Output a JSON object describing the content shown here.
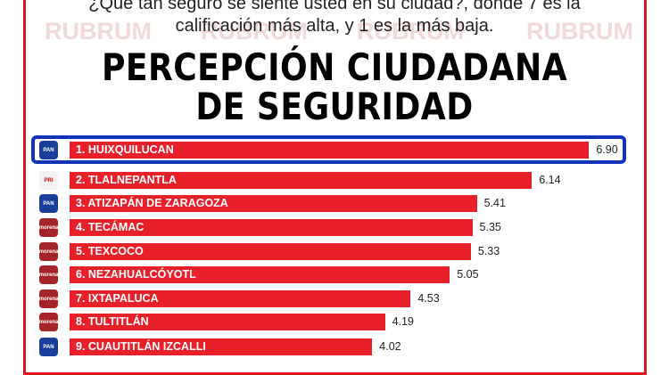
{
  "question_line1": "¿Qué tan seguro se siente usted en su ciudad?, donde 7 es la",
  "question_line2": "calificación más alta, y  1 es la más baja.",
  "watermark": "RUBRUM",
  "colors": {
    "bar": "#e8202a",
    "highlight": "#1233b8",
    "frame": "#e3141e"
  },
  "chart_data": {
    "type": "bar",
    "orientation": "horizontal",
    "title": "PERCEPCIÓN CIUDADANA DE SEGURIDAD",
    "title_line1": "PERCEPCIÓN CIUDADANA",
    "title_line2": "DE SEGURIDAD",
    "xlim": [
      0,
      7
    ],
    "categories": [
      "1. HUIXQUILUCAN",
      "2. TLALNEPANTLA",
      "3. ATIZAPÁN DE ZARAGOZA",
      "4. TECÁMAC",
      "5. TEXCOCO",
      "6. NEZAHUALCÓYOTL",
      "7. IXTAPALUCA",
      "8. TULTITLÁN",
      "9. CUAUTITLÁN IZCALLI"
    ],
    "values": [
      6.9,
      6.14,
      5.41,
      5.35,
      5.33,
      5.05,
      4.53,
      4.19,
      4.02
    ],
    "value_labels": [
      "6.90",
      "6.14",
      "5.41",
      "5.35",
      "5.33",
      "5.05",
      "4.53",
      "4.19",
      "4.02"
    ],
    "parties": [
      "PAN",
      "PRI",
      "PAN",
      "morena",
      "morena",
      "morena",
      "morena",
      "morena",
      "PAN"
    ],
    "highlighted": 0
  }
}
